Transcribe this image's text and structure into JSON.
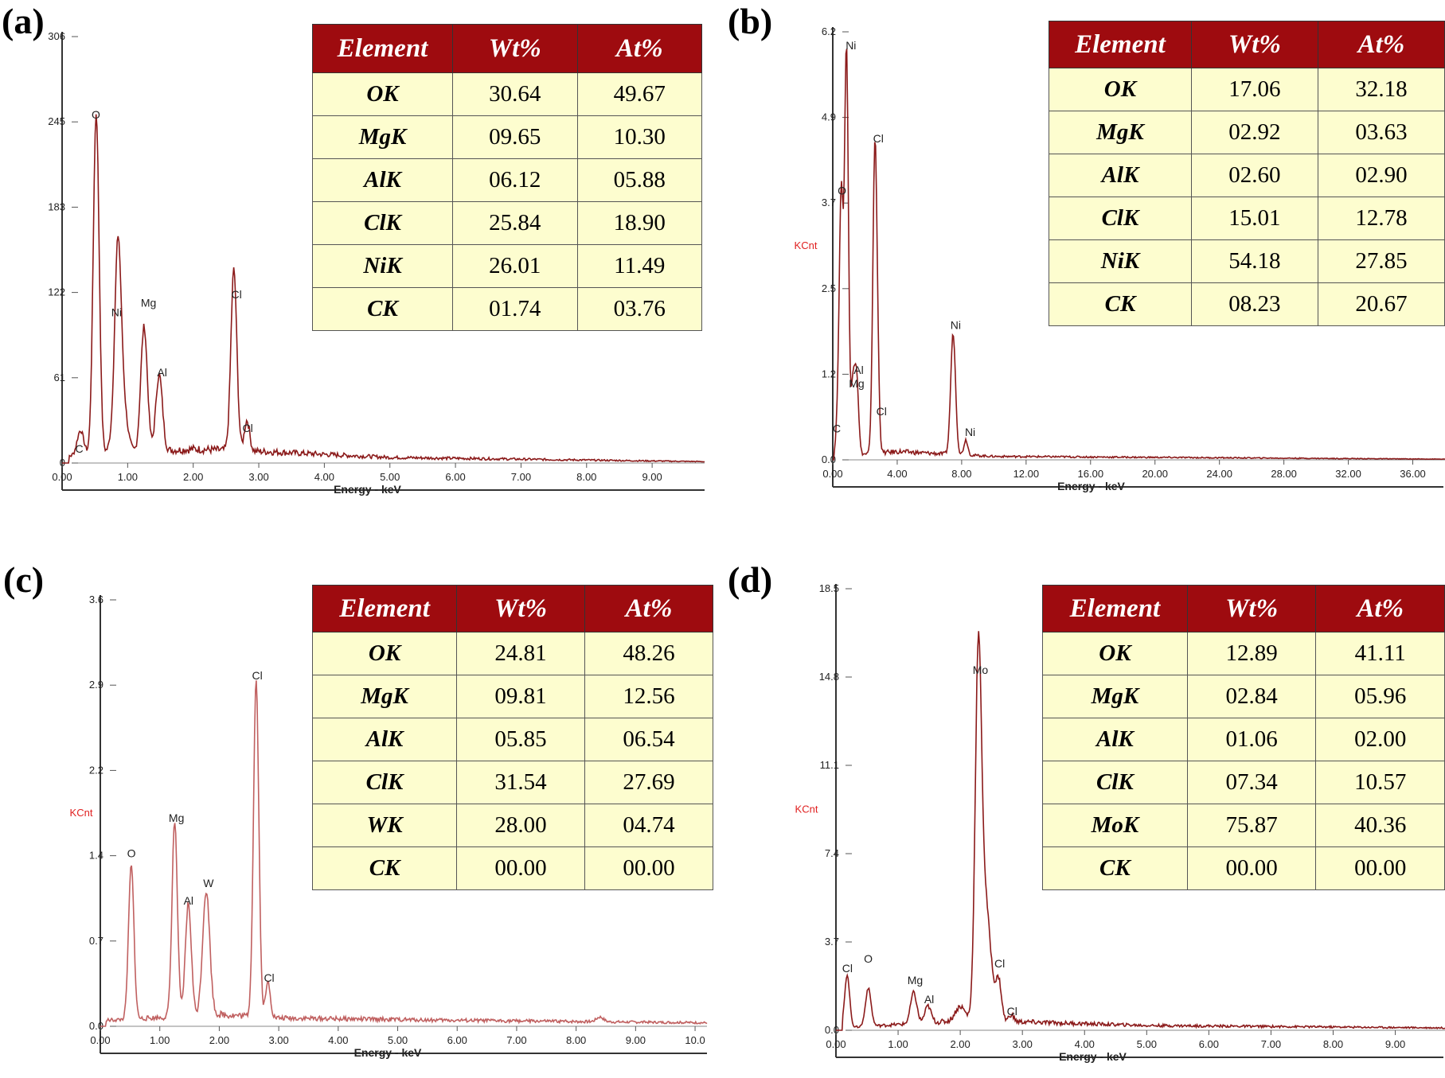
{
  "panels": [
    {
      "label": "(a)",
      "xlabel": "Energy - keV",
      "ylabel": "",
      "yticks": [
        "0",
        "61",
        "122",
        "183",
        "245",
        "306"
      ],
      "xticks": [
        "0.00",
        "1.00",
        "2.00",
        "3.00",
        "4.00",
        "5.00",
        "6.00",
        "7.00",
        "8.00",
        "9.00"
      ],
      "headers": [
        "Element",
        "Wt%",
        "At%"
      ],
      "rows": [
        [
          "OK",
          "30.64",
          "49.67"
        ],
        [
          "MgK",
          "09.65",
          "10.30"
        ],
        [
          "AlK",
          "06.12",
          "05.88"
        ],
        [
          "ClK",
          "25.84",
          "18.90"
        ],
        [
          "NiK",
          "26.01",
          "11.49"
        ],
        [
          "CK",
          "01.74",
          "03.76"
        ]
      ],
      "peak_labels": [
        "C",
        "O",
        "Ni",
        "Mg",
        "Al",
        "Cl",
        "Cl"
      ]
    },
    {
      "label": "(b)",
      "xlabel": "Energy - keV",
      "ylabel": "KCnt",
      "yticks": [
        "0.0",
        "1.2",
        "2.5",
        "3.7",
        "4.9",
        "6.2"
      ],
      "xticks": [
        "0.00",
        "4.00",
        "8.00",
        "12.00",
        "16.00",
        "20.00",
        "24.00",
        "28.00",
        "32.00",
        "36.00"
      ],
      "headers": [
        "Element",
        "Wt%",
        "At%"
      ],
      "rows": [
        [
          "OK",
          "17.06",
          "32.18"
        ],
        [
          "MgK",
          "02.92",
          "03.63"
        ],
        [
          "AlK",
          "02.60",
          "02.90"
        ],
        [
          "ClK",
          "15.01",
          "12.78"
        ],
        [
          "NiK",
          "54.18",
          "27.85"
        ],
        [
          "CK",
          "08.23",
          "20.67"
        ]
      ],
      "peak_labels": [
        "Ni",
        "O",
        "Cl",
        "Al",
        "Mg",
        "Cl",
        "C",
        "Ni",
        "Ni"
      ]
    },
    {
      "label": "(c)",
      "xlabel": "Energy - keV",
      "ylabel": "KCnt",
      "yticks": [
        "0.0",
        "0.7",
        "1.4",
        "2.2",
        "2.9",
        "3.6"
      ],
      "xticks": [
        "0.00",
        "1.00",
        "2.00",
        "3.00",
        "4.00",
        "5.00",
        "6.00",
        "7.00",
        "8.00",
        "9.00",
        "10.0"
      ],
      "headers": [
        "Element",
        "Wt%",
        "At%"
      ],
      "rows": [
        [
          "OK",
          "24.81",
          "48.26"
        ],
        [
          "MgK",
          "09.81",
          "12.56"
        ],
        [
          "AlK",
          "05.85",
          "06.54"
        ],
        [
          "ClK",
          "31.54",
          "27.69"
        ],
        [
          "WK",
          "28.00",
          "04.74"
        ],
        [
          "CK",
          "00.00",
          "00.00"
        ]
      ],
      "peak_labels": [
        "O",
        "Mg",
        "Al",
        "W",
        "Cl",
        "Cl"
      ]
    },
    {
      "label": "(d)",
      "xlabel": "Energy - keV",
      "ylabel": "KCnt",
      "yticks": [
        "0.0",
        "3.7",
        "7.4",
        "11.1",
        "14.8",
        "18.5"
      ],
      "xticks": [
        "0.00",
        "1.00",
        "2.00",
        "3.00",
        "4.00",
        "5.00",
        "6.00",
        "7.00",
        "8.00",
        "9.00"
      ],
      "headers": [
        "Element",
        "Wt%",
        "At%"
      ],
      "rows": [
        [
          "OK",
          "12.89",
          "41.11"
        ],
        [
          "MgK",
          "02.84",
          "05.96"
        ],
        [
          "AlK",
          "01.06",
          "02.00"
        ],
        [
          "ClK",
          "07.34",
          "10.57"
        ],
        [
          "MoK",
          "75.87",
          "40.36"
        ],
        [
          "CK",
          "00.00",
          "00.00"
        ]
      ],
      "peak_labels": [
        "Cl",
        "O",
        "Mg",
        "Al",
        "Mo",
        "Cl",
        "Cl"
      ]
    }
  ],
  "chart_data": [
    {
      "type": "line",
      "xlim": [
        0,
        9.8
      ],
      "ylim": [
        0,
        306
      ],
      "x_unit": "keV",
      "peaks": [
        {
          "x": 0.28,
          "y": 18,
          "w": 0.05
        },
        {
          "x": 0.52,
          "y": 245,
          "w": 0.045
        },
        {
          "x": 0.85,
          "y": 100,
          "w": 0.045
        },
        {
          "x": 0.88,
          "y": 60,
          "w": 0.08
        },
        {
          "x": 1.25,
          "y": 90,
          "w": 0.05
        },
        {
          "x": 1.48,
          "y": 55,
          "w": 0.05
        },
        {
          "x": 2.62,
          "y": 130,
          "w": 0.045
        },
        {
          "x": 2.82,
          "y": 22,
          "w": 0.04
        }
      ],
      "baseline": [
        {
          "x": 0.1,
          "y": 5
        },
        {
          "x": 2.0,
          "y": 10
        },
        {
          "x": 3.2,
          "y": 8
        },
        {
          "x": 5.0,
          "y": 4
        },
        {
          "x": 9.8,
          "y": 1
        }
      ],
      "series": [
        {
          "values": []
        }
      ],
      "label_pos": [
        {
          "text": "C",
          "x": 0.2,
          "y": 5
        },
        {
          "text": "O",
          "x": 0.45,
          "y": 245
        },
        {
          "text": "Ni",
          "x": 0.75,
          "y": 103
        },
        {
          "text": "Mg",
          "x": 1.2,
          "y": 110
        },
        {
          "text": "Al",
          "x": 1.45,
          "y": 60
        },
        {
          "text": "Cl",
          "x": 2.58,
          "y": 116
        },
        {
          "text": "Cl",
          "x": 2.75,
          "y": 20
        }
      ],
      "line_color": "#8b1a1a"
    },
    {
      "type": "line",
      "xlim": [
        0,
        38
      ],
      "ylim": [
        0,
        6.2
      ],
      "x_unit": "keV",
      "peaks": [
        {
          "x": 0.28,
          "y": 0.4,
          "w": 0.1
        },
        {
          "x": 0.52,
          "y": 3.8,
          "w": 0.12
        },
        {
          "x": 0.85,
          "y": 5.9,
          "w": 0.12
        },
        {
          "x": 1.25,
          "y": 1.0,
          "w": 0.12
        },
        {
          "x": 1.48,
          "y": 1.1,
          "w": 0.12
        },
        {
          "x": 2.62,
          "y": 4.5,
          "w": 0.13
        },
        {
          "x": 2.82,
          "y": 0.5,
          "w": 0.1
        },
        {
          "x": 7.47,
          "y": 1.75,
          "w": 0.15
        },
        {
          "x": 8.26,
          "y": 0.22,
          "w": 0.12
        }
      ],
      "baseline": [
        {
          "x": 0.1,
          "y": 0.05
        },
        {
          "x": 4.0,
          "y": 0.12
        },
        {
          "x": 10.0,
          "y": 0.05
        },
        {
          "x": 38,
          "y": 0.01
        }
      ],
      "series": [
        {
          "values": []
        }
      ],
      "label_pos": [
        {
          "text": "Ni",
          "x": 0.8,
          "y": 5.9
        },
        {
          "text": "O",
          "x": 0.3,
          "y": 3.8
        },
        {
          "text": "Cl",
          "x": 2.5,
          "y": 4.55
        },
        {
          "text": "Al",
          "x": 1.3,
          "y": 1.2
        },
        {
          "text": "Mg",
          "x": 1.0,
          "y": 1.0
        },
        {
          "text": "Cl",
          "x": 2.7,
          "y": 0.6
        },
        {
          "text": "C",
          "x": 0.0,
          "y": 0.35
        },
        {
          "text": "Ni",
          "x": 7.3,
          "y": 1.85
        },
        {
          "text": "Ni",
          "x": 8.2,
          "y": 0.3
        }
      ],
      "line_color": "#8b1a1a"
    },
    {
      "type": "line",
      "xlim": [
        0,
        10.2
      ],
      "ylim": [
        0,
        3.6
      ],
      "x_unit": "keV",
      "peaks": [
        {
          "x": 0.52,
          "y": 1.3,
          "w": 0.045
        },
        {
          "x": 1.25,
          "y": 1.65,
          "w": 0.045
        },
        {
          "x": 1.48,
          "y": 0.95,
          "w": 0.05
        },
        {
          "x": 1.78,
          "y": 1.05,
          "w": 0.06
        },
        {
          "x": 2.62,
          "y": 2.85,
          "w": 0.045
        },
        {
          "x": 2.82,
          "y": 0.3,
          "w": 0.04
        },
        {
          "x": 8.4,
          "y": 0.04,
          "w": 0.06
        }
      ],
      "baseline": [
        {
          "x": 0.1,
          "y": 0.05
        },
        {
          "x": 2.0,
          "y": 0.1
        },
        {
          "x": 3.0,
          "y": 0.07
        },
        {
          "x": 6.0,
          "y": 0.05
        },
        {
          "x": 10.2,
          "y": 0.03
        }
      ],
      "series": [
        {
          "values": []
        }
      ],
      "label_pos": [
        {
          "text": "O",
          "x": 0.45,
          "y": 1.4
        },
        {
          "text": "Mg",
          "x": 1.15,
          "y": 1.7
        },
        {
          "text": "Al",
          "x": 1.4,
          "y": 1.0
        },
        {
          "text": "W",
          "x": 1.73,
          "y": 1.15
        },
        {
          "text": "Cl",
          "x": 2.55,
          "y": 2.9
        },
        {
          "text": "Cl",
          "x": 2.75,
          "y": 0.35
        }
      ],
      "line_color": "#c06060"
    },
    {
      "type": "line",
      "xlim": [
        0,
        9.8
      ],
      "ylim": [
        0,
        18.5
      ],
      "x_unit": "keV",
      "peaks": [
        {
          "x": 0.18,
          "y": 2.2,
          "w": 0.04
        },
        {
          "x": 0.52,
          "y": 1.6,
          "w": 0.045
        },
        {
          "x": 1.25,
          "y": 1.3,
          "w": 0.05
        },
        {
          "x": 1.48,
          "y": 0.7,
          "w": 0.05
        },
        {
          "x": 2.0,
          "y": 0.6,
          "w": 0.08
        },
        {
          "x": 2.29,
          "y": 13.8,
          "w": 0.05
        },
        {
          "x": 2.4,
          "y": 5.0,
          "w": 0.09
        },
        {
          "x": 2.62,
          "y": 1.6,
          "w": 0.045
        },
        {
          "x": 2.82,
          "y": 0.3,
          "w": 0.04
        }
      ],
      "baseline": [
        {
          "x": 0.1,
          "y": 0.1
        },
        {
          "x": 2.0,
          "y": 0.4
        },
        {
          "x": 3.0,
          "y": 0.35
        },
        {
          "x": 5.0,
          "y": 0.2
        },
        {
          "x": 9.8,
          "y": 0.1
        }
      ],
      "series": [
        {
          "values": []
        }
      ],
      "label_pos": [
        {
          "text": "Cl",
          "x": 0.1,
          "y": 2.3
        },
        {
          "text": "O",
          "x": 0.45,
          "y": 2.7
        },
        {
          "text": "Mg",
          "x": 1.15,
          "y": 1.8
        },
        {
          "text": "Al",
          "x": 1.42,
          "y": 1.0
        },
        {
          "text": "Mo",
          "x": 2.2,
          "y": 14.8
        },
        {
          "text": "Cl",
          "x": 2.55,
          "y": 2.5
        },
        {
          "text": "Cl",
          "x": 2.75,
          "y": 0.5
        }
      ],
      "line_color": "#8b1a1a"
    }
  ],
  "colors": {
    "header_bg": "#9e0b0f",
    "cell_bg": "#fdfdcf",
    "ylabel": "#e02020"
  }
}
